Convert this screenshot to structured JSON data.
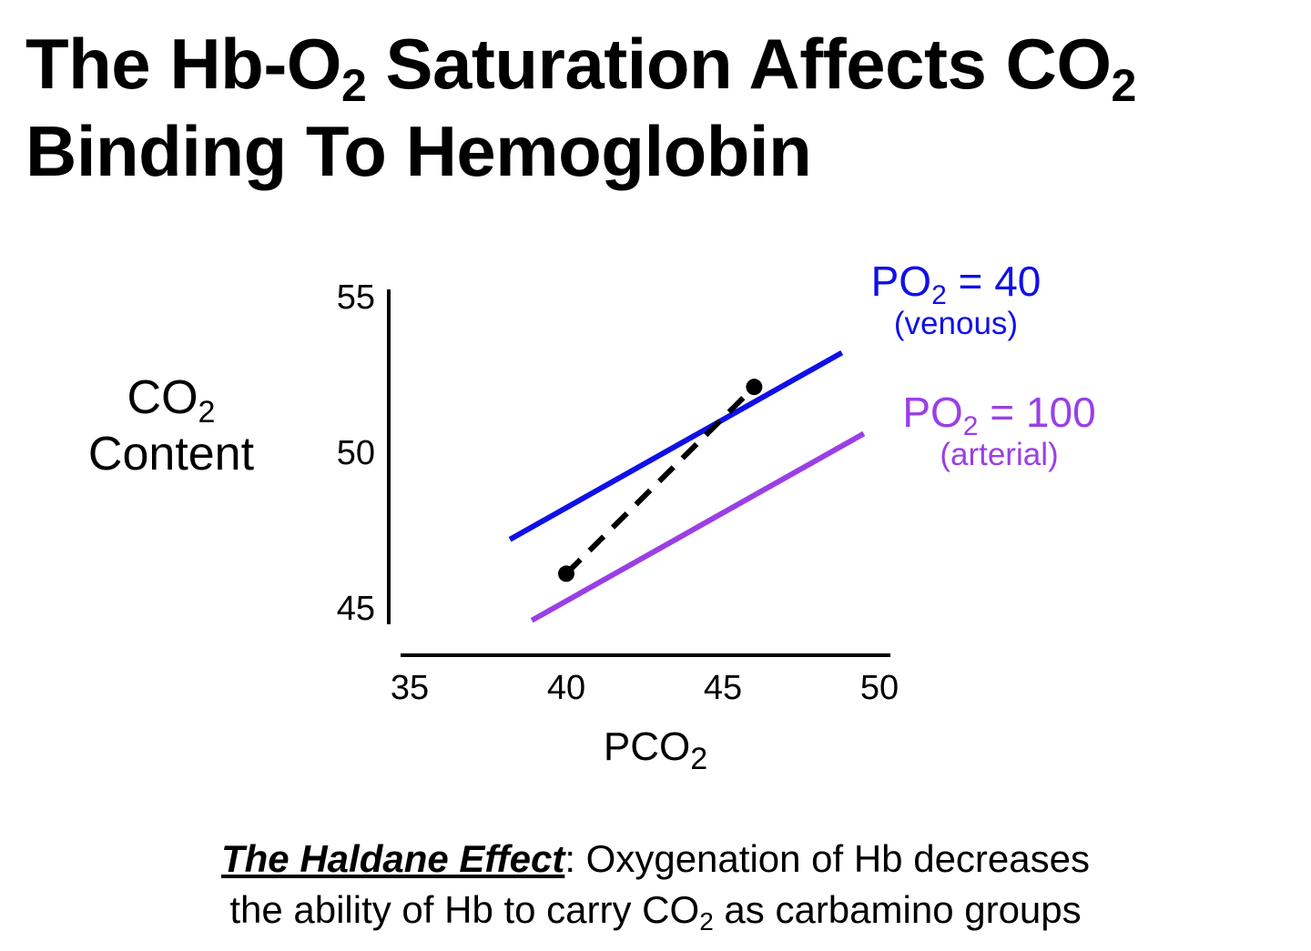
{
  "title": {
    "line1_a": "The Hb-O",
    "line1_sub1": "2",
    "line1_b": " Saturation Affects CO",
    "line1_sub2": "2",
    "line2": "Binding To Hemoglobin"
  },
  "colors": {
    "venous": "#1010e8",
    "arterial": "#9a3fe6",
    "axis": "#000000",
    "haldane": "#000000"
  },
  "chart_data": {
    "type": "line",
    "xlabel": "PCO2",
    "ylabel": "CO2 Content",
    "x_ticks": [
      "35",
      "40",
      "45",
      "50"
    ],
    "y_ticks": [
      "55",
      "50",
      "45"
    ],
    "xlim": [
      35,
      50
    ],
    "ylim": [
      45,
      55
    ],
    "grid": false,
    "series": [
      {
        "name": "PO2 = 40 (venous)",
        "x": [
          38.2,
          48.8
        ],
        "y": [
          47.2,
          53.2
        ]
      },
      {
        "name": "PO2 = 100 (arterial)",
        "x": [
          38.9,
          49.5
        ],
        "y": [
          44.6,
          50.6
        ]
      },
      {
        "x": [
          40,
          46
        ],
        "y": [
          46.1,
          52.1
        ],
        "style": "dashed"
      }
    ],
    "points": [
      {
        "x": 40,
        "y": 46.1
      },
      {
        "x": 46,
        "y": 52.1
      }
    ]
  },
  "labels": {
    "ylabel_a": "CO",
    "ylabel_sub": "2",
    "ylabel_b": "Content",
    "xlabel_a": "PCO",
    "xlabel_sub": "2",
    "venous_a": "PO",
    "venous_sub": "2",
    "venous_b": " = 40",
    "venous_note": "(venous)",
    "arterial_a": "PO",
    "arterial_sub": "2",
    "arterial_b": " = 100",
    "arterial_note": "(arterial)"
  },
  "footer": {
    "term": "The Haldane Effect",
    "text1": ": Oxygenation of Hb decreases",
    "text2a": "the ability of Hb to carry CO",
    "text2_sub": "2",
    "text2b": " as carbamino groups"
  }
}
